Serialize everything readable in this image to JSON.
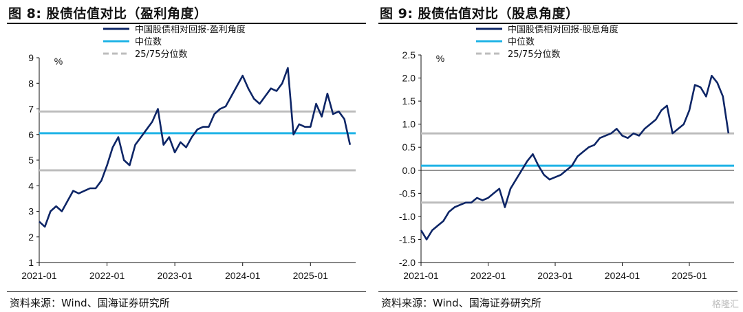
{
  "source_note": "资料来源：Wind、国海证券研究所",
  "watermark_text": "格隆汇",
  "charts": [
    {
      "title": "图 8:  股债估值对比（盈利角度）",
      "chart_data": {
        "type": "line",
        "title": "股债估值对比（盈利角度）",
        "unit_label": "%",
        "ylim": [
          1,
          9
        ],
        "yticks": [
          1,
          2,
          3,
          4,
          5,
          6,
          7,
          8,
          9
        ],
        "xlim": [
          "2021-01",
          "2025-09"
        ],
        "xticks": [
          "2021-01",
          "2022-01",
          "2023-01",
          "2024-01",
          "2025-01"
        ],
        "legend_placement": "top-center",
        "series": [
          {
            "name": "中国股债相对回报-盈利角度",
            "color": "#0d2566",
            "style": "line",
            "x": [
              "2021-01",
              "2021-02",
              "2021-03",
              "2021-04",
              "2021-05",
              "2021-06",
              "2021-07",
              "2021-08",
              "2021-09",
              "2021-10",
              "2021-11",
              "2021-12",
              "2022-01",
              "2022-02",
              "2022-03",
              "2022-04",
              "2022-05",
              "2022-06",
              "2022-07",
              "2022-08",
              "2022-09",
              "2022-10",
              "2022-11",
              "2022-12",
              "2023-01",
              "2023-02",
              "2023-03",
              "2023-04",
              "2023-05",
              "2023-06",
              "2023-07",
              "2023-08",
              "2023-09",
              "2023-10",
              "2023-11",
              "2023-12",
              "2024-01",
              "2024-02",
              "2024-03",
              "2024-04",
              "2024-05",
              "2024-06",
              "2024-07",
              "2024-08",
              "2024-09",
              "2024-10",
              "2024-11",
              "2024-12",
              "2025-01",
              "2025-02",
              "2025-03",
              "2025-04",
              "2025-05",
              "2025-06",
              "2025-07",
              "2025-08"
            ],
            "values": [
              2.6,
              2.4,
              3.0,
              3.2,
              3.0,
              3.4,
              3.8,
              3.7,
              3.8,
              3.9,
              3.9,
              4.2,
              4.8,
              5.5,
              5.9,
              5.0,
              4.8,
              5.6,
              5.9,
              6.2,
              6.5,
              7.0,
              5.6,
              5.9,
              5.3,
              5.7,
              5.5,
              5.9,
              6.2,
              6.3,
              6.3,
              6.8,
              7.0,
              7.1,
              7.5,
              7.9,
              8.3,
              7.8,
              7.4,
              7.2,
              7.5,
              7.8,
              7.7,
              8.0,
              8.6,
              6.0,
              6.4,
              6.3,
              6.3,
              7.2,
              6.7,
              7.6,
              6.8,
              6.9,
              6.6,
              5.6
            ]
          },
          {
            "name": "中位数",
            "color": "#1fb3e6",
            "style": "hline",
            "value": 6.05
          },
          {
            "name": "25/75分位数",
            "color": "#bdbdbd",
            "style": "hline-pair",
            "values": [
              4.6,
              6.9
            ]
          }
        ]
      }
    },
    {
      "title": "图 9:  股债估值对比（股息角度）",
      "chart_data": {
        "type": "line",
        "title": "股债估值对比（股息角度）",
        "unit_label": "%",
        "ylim": [
          -2.0,
          2.5
        ],
        "yticks": [
          -2.0,
          -1.5,
          -1.0,
          -0.5,
          0.0,
          0.5,
          1.0,
          1.5,
          2.0,
          2.5
        ],
        "xlim": [
          "2021-01",
          "2025-09"
        ],
        "xticks": [
          "2021-01",
          "2022-01",
          "2023-01",
          "2024-01",
          "2025-01"
        ],
        "legend_placement": "top-center",
        "series": [
          {
            "name": "中国股债相对回报-股息角度",
            "color": "#0d2566",
            "style": "line",
            "x": [
              "2021-01",
              "2021-02",
              "2021-03",
              "2021-04",
              "2021-05",
              "2021-06",
              "2021-07",
              "2021-08",
              "2021-09",
              "2021-10",
              "2021-11",
              "2021-12",
              "2022-01",
              "2022-02",
              "2022-03",
              "2022-04",
              "2022-05",
              "2022-06",
              "2022-07",
              "2022-08",
              "2022-09",
              "2022-10",
              "2022-11",
              "2022-12",
              "2023-01",
              "2023-02",
              "2023-03",
              "2023-04",
              "2023-05",
              "2023-06",
              "2023-07",
              "2023-08",
              "2023-09",
              "2023-10",
              "2023-11",
              "2023-12",
              "2024-01",
              "2024-02",
              "2024-03",
              "2024-04",
              "2024-05",
              "2024-06",
              "2024-07",
              "2024-08",
              "2024-09",
              "2024-10",
              "2024-11",
              "2024-12",
              "2025-01",
              "2025-02",
              "2025-03",
              "2025-04",
              "2025-05",
              "2025-06",
              "2025-07",
              "2025-08"
            ],
            "values": [
              -1.3,
              -1.5,
              -1.3,
              -1.2,
              -1.1,
              -0.9,
              -0.8,
              -0.75,
              -0.7,
              -0.7,
              -0.6,
              -0.65,
              -0.6,
              -0.5,
              -0.4,
              -0.8,
              -0.4,
              -0.2,
              0.0,
              0.2,
              0.35,
              0.1,
              -0.1,
              -0.2,
              -0.15,
              -0.1,
              0.0,
              0.1,
              0.3,
              0.4,
              0.5,
              0.55,
              0.7,
              0.75,
              0.8,
              0.9,
              0.75,
              0.7,
              0.8,
              0.75,
              0.9,
              1.0,
              1.1,
              1.3,
              1.4,
              0.8,
              0.9,
              1.0,
              1.3,
              1.85,
              1.8,
              1.6,
              2.05,
              1.9,
              1.6,
              0.8
            ]
          },
          {
            "name": "中位数",
            "color": "#1fb3e6",
            "style": "hline",
            "value": 0.1
          },
          {
            "name": "25/75分位数",
            "color": "#bdbdbd",
            "style": "hline-pair",
            "values": [
              -0.7,
              0.8
            ]
          }
        ]
      }
    }
  ]
}
